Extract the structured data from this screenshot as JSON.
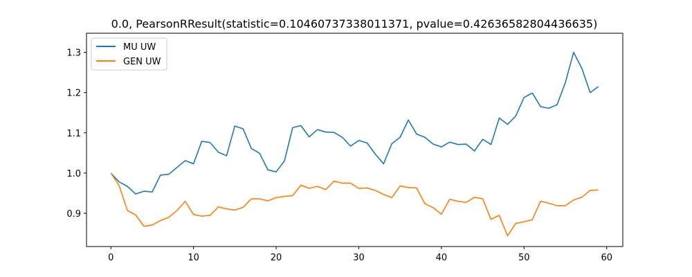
{
  "chart_data": {
    "type": "line",
    "title": "0.0, PearsonRResult(statistic=0.10460737338011371, pvalue=0.42636582804436635)",
    "xlabel": "",
    "ylabel": "",
    "xlim": [
      -2.95,
      61.95
    ],
    "ylim": [
      0.8175,
      1.3475
    ],
    "xticks": [
      0,
      10,
      20,
      30,
      40,
      50,
      60
    ],
    "xtick_labels": [
      "0",
      "10",
      "20",
      "30",
      "40",
      "50",
      "60"
    ],
    "yticks": [
      0.9,
      1.0,
      1.1,
      1.2,
      1.3
    ],
    "ytick_labels": [
      "0.9",
      "1.0",
      "1.1",
      "1.2",
      "1.3"
    ],
    "grid": false,
    "legend_position": "top-left",
    "x": [
      0,
      1,
      2,
      3,
      4,
      5,
      6,
      7,
      8,
      9,
      10,
      11,
      12,
      13,
      14,
      15,
      16,
      17,
      18,
      19,
      20,
      21,
      22,
      23,
      24,
      25,
      26,
      27,
      28,
      29,
      30,
      31,
      32,
      33,
      34,
      35,
      36,
      37,
      38,
      39,
      40,
      41,
      42,
      43,
      44,
      45,
      46,
      47,
      48,
      49,
      50,
      51,
      52,
      53,
      54,
      55,
      56,
      57,
      58,
      59
    ],
    "series": [
      {
        "name": "MU UW",
        "color": "#1f77b4",
        "values": [
          1.0,
          0.978,
          0.967,
          0.948,
          0.955,
          0.953,
          0.995,
          0.997,
          1.014,
          1.031,
          1.023,
          1.079,
          1.076,
          1.052,
          1.043,
          1.117,
          1.11,
          1.061,
          1.049,
          1.008,
          1.003,
          1.03,
          1.113,
          1.118,
          1.09,
          1.108,
          1.102,
          1.101,
          1.089,
          1.067,
          1.081,
          1.075,
          1.047,
          1.023,
          1.073,
          1.089,
          1.132,
          1.097,
          1.089,
          1.072,
          1.065,
          1.077,
          1.071,
          1.072,
          1.055,
          1.084,
          1.071,
          1.137,
          1.121,
          1.142,
          1.188,
          1.199,
          1.165,
          1.161,
          1.17,
          1.225,
          1.3,
          1.26,
          1.2,
          1.215
        ]
      },
      {
        "name": "GEN UW",
        "color": "#ff7f0e",
        "values": [
          1.0,
          0.969,
          0.907,
          0.896,
          0.868,
          0.871,
          0.882,
          0.89,
          0.907,
          0.93,
          0.897,
          0.893,
          0.895,
          0.916,
          0.911,
          0.908,
          0.915,
          0.936,
          0.936,
          0.931,
          0.939,
          0.942,
          0.944,
          0.97,
          0.962,
          0.967,
          0.959,
          0.98,
          0.975,
          0.975,
          0.962,
          0.963,
          0.957,
          0.947,
          0.939,
          0.968,
          0.964,
          0.963,
          0.924,
          0.914,
          0.898,
          0.935,
          0.93,
          0.927,
          0.94,
          0.936,
          0.885,
          0.895,
          0.844,
          0.875,
          0.879,
          0.884,
          0.93,
          0.925,
          0.919,
          0.919,
          0.933,
          0.94,
          0.957,
          0.958
        ]
      }
    ]
  }
}
